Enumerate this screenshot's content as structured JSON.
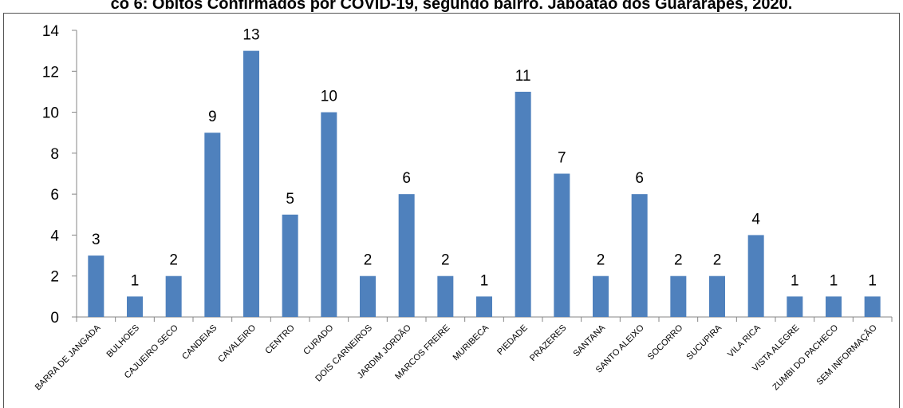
{
  "chart_data": {
    "type": "bar",
    "title": "co 6: Óbitos Confirmados por COVID-19, segundo bairro. Jaboatão dos Guararapes, 2020.",
    "xlabel": "",
    "ylabel": "",
    "ylim": [
      0,
      14
    ],
    "yticks": [
      0,
      2,
      4,
      6,
      8,
      10,
      12,
      14
    ],
    "grid": false,
    "legend": "none",
    "bar_color": "#4f81bd",
    "categories": [
      "BARRA DE JANGADA",
      "BULHOES",
      "CAJUEIRO SECO",
      "CANDEIAS",
      "CAVALEIRO",
      "CENTRO",
      "CURADO",
      "DOIS CARNEIROS",
      "JARDIM JORDÃO",
      "MARCOS FREIRE",
      "MURIBECA",
      "PIEDADE",
      "PRAZERES",
      "SANTANA",
      "SANTO ALEIXO",
      "SOCORRO",
      "SUCUPIRA",
      "VILA RICA",
      "VISTA ALEGRE",
      "ZUMBI DO PACHECO",
      "SEM INFORMAÇÃO"
    ],
    "values": [
      3,
      1,
      2,
      9,
      13,
      5,
      10,
      2,
      6,
      2,
      1,
      11,
      7,
      2,
      6,
      2,
      2,
      4,
      1,
      1,
      1
    ]
  }
}
